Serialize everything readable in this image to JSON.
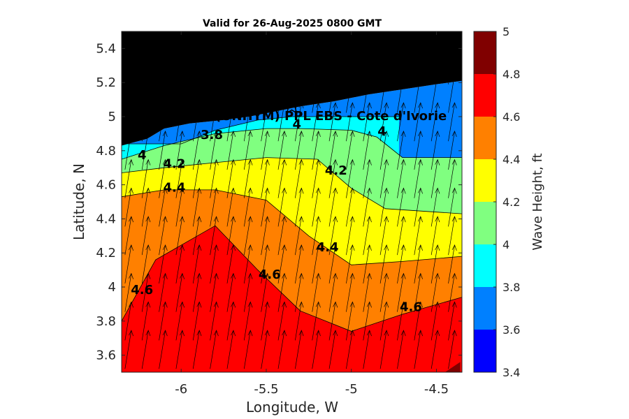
{
  "chart_data": {
    "type": "contour",
    "title": "Valid for 26-Aug-2025 0800 GMT",
    "xlabel": "Longitude, W",
    "ylabel": "Latitude, N",
    "xlim": [
      -6.35,
      -4.35
    ],
    "ylim": [
      3.5,
      5.5
    ],
    "x_ticks": [
      -6,
      -5.5,
      -5,
      -4.5
    ],
    "x_tick_labels": [
      "-6",
      "-5.5",
      "-5",
      "-4.5"
    ],
    "y_ticks": [
      3.6,
      3.8,
      4,
      4.2,
      4.4,
      4.6,
      4.8,
      5,
      5.2,
      5.4
    ],
    "y_tick_labels": [
      "3.6",
      "3.8",
      "4",
      "4.2",
      "4.4",
      "4.6",
      "4.8",
      "5",
      "5.2",
      "5.4"
    ],
    "colorbar": {
      "label": "Wave Height, ft",
      "levels": [
        3.4,
        3.6,
        3.8,
        4.0,
        4.2,
        4.4,
        4.6,
        4.8,
        5.0
      ],
      "level_labels": [
        "3.4",
        "3.6",
        "3.8",
        "4",
        "4.2",
        "4.4",
        "4.6",
        "4.8",
        "5"
      ],
      "colors": [
        "#0000ff",
        "#0080ff",
        "#00ffff",
        "#80ff80",
        "#ffff00",
        "#ff8000",
        "#ff0000",
        "#800000"
      ]
    },
    "contour_lines": [
      {
        "level": 3.8,
        "points": [
          [
            -6.35,
            4.84
          ],
          [
            -6.0,
            4.84
          ],
          [
            -5.8,
            4.92
          ],
          [
            -5.55,
            4.98
          ],
          [
            -5.35,
            5.0
          ],
          [
            -4.95,
            5.0
          ],
          [
            -4.85,
            5.0
          ],
          [
            -4.72,
            5.0
          ]
        ]
      },
      {
        "level": 4.0,
        "points": [
          [
            -6.35,
            4.75
          ],
          [
            -6.1,
            4.83
          ],
          [
            -5.8,
            4.9
          ],
          [
            -5.5,
            4.93
          ],
          [
            -5.3,
            4.93
          ],
          [
            -5.0,
            4.92
          ],
          [
            -4.85,
            4.88
          ],
          [
            -4.7,
            4.76
          ],
          [
            -4.35,
            4.76
          ]
        ]
      },
      {
        "level": 4.2,
        "points": [
          [
            -6.35,
            4.67
          ],
          [
            -6.1,
            4.7
          ],
          [
            -5.8,
            4.73
          ],
          [
            -5.5,
            4.76
          ],
          [
            -5.2,
            4.75
          ],
          [
            -5.0,
            4.58
          ],
          [
            -4.8,
            4.46
          ],
          [
            -4.35,
            4.43
          ]
        ]
      },
      {
        "level": 4.4,
        "points": [
          [
            -6.35,
            4.53
          ],
          [
            -6.1,
            4.57
          ],
          [
            -5.8,
            4.57
          ],
          [
            -5.5,
            4.51
          ],
          [
            -5.25,
            4.3
          ],
          [
            -5.0,
            4.13
          ],
          [
            -4.7,
            4.15
          ],
          [
            -4.35,
            4.18
          ]
        ]
      },
      {
        "level": 4.6,
        "points": [
          [
            -6.35,
            3.8
          ],
          [
            -6.15,
            4.16
          ],
          [
            -5.8,
            4.36
          ],
          [
            -5.55,
            4.1
          ],
          [
            -5.3,
            3.86
          ],
          [
            -5.0,
            3.74
          ],
          [
            -4.7,
            3.84
          ],
          [
            -4.35,
            3.94
          ]
        ]
      }
    ],
    "contour_labels": [
      {
        "text": "3.8",
        "x": -5.82,
        "y": 4.89
      },
      {
        "text": "4",
        "x": -5.32,
        "y": 4.95
      },
      {
        "text": "4",
        "x": -4.82,
        "y": 4.91
      },
      {
        "text": "4",
        "x": -6.23,
        "y": 4.77
      },
      {
        "text": "4.2",
        "x": -6.04,
        "y": 4.72
      },
      {
        "text": "4.2",
        "x": -5.09,
        "y": 4.68
      },
      {
        "text": "4.4",
        "x": -6.04,
        "y": 4.58
      },
      {
        "text": "4.4",
        "x": -5.14,
        "y": 4.23
      },
      {
        "text": "4.6",
        "x": -6.23,
        "y": 3.98
      },
      {
        "text": "4.6",
        "x": -5.48,
        "y": 4.07
      },
      {
        "text": "4.6",
        "x": -4.65,
        "y": 3.88
      }
    ],
    "site": {
      "label": "(ONHYM) PPL EBS  - Cote d'Ivorie",
      "lon": -5.35,
      "lat": 5.06
    },
    "land_color": "#000000",
    "vector_field": {
      "description_direction": "northward, slightly east",
      "lon_step": 0.1,
      "lat_step": 0.167
    }
  }
}
